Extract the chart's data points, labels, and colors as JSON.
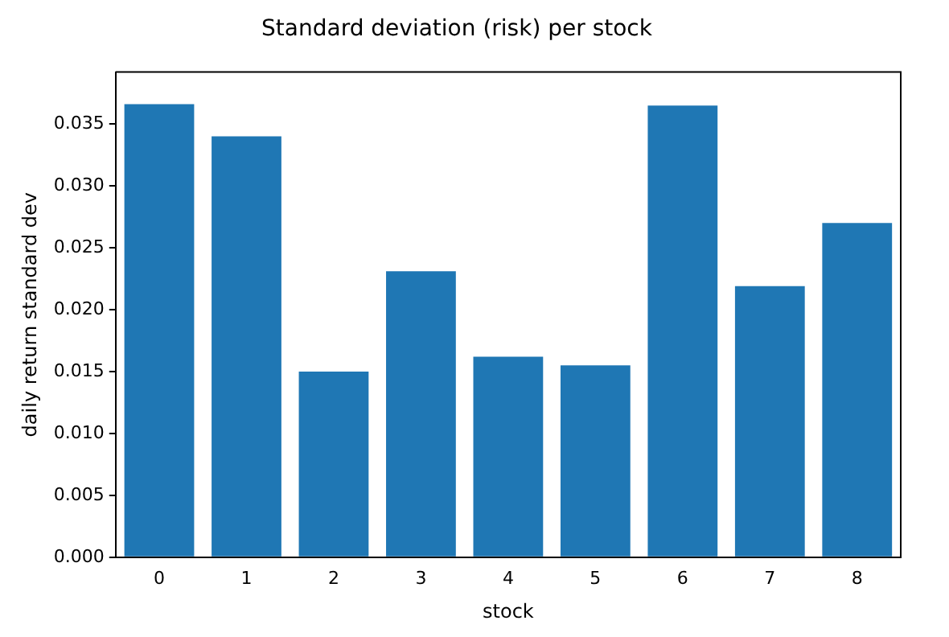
{
  "chart_data": {
    "type": "bar",
    "title": "Standard deviation (risk) per stock",
    "xlabel": "stock",
    "ylabel": "daily return standard dev",
    "categories": [
      "0",
      "1",
      "2",
      "3",
      "4",
      "5",
      "6",
      "7",
      "8"
    ],
    "values": [
      0.0366,
      0.034,
      0.015,
      0.0231,
      0.0162,
      0.0155,
      0.0365,
      0.0219,
      0.027
    ],
    "color": "#1f77b4",
    "ylim": [
      0,
      0.0392
    ],
    "yticks": [
      {
        "value": 0,
        "label": "0.000"
      },
      0.005,
      {
        "value": 0.01,
        "label": "0.010"
      },
      0.015,
      {
        "value": 0.02,
        "label": "0.020"
      },
      0.025,
      {
        "value": 0.03,
        "label": "0.030"
      },
      0.035
    ],
    "grid": false,
    "legend": false
  }
}
